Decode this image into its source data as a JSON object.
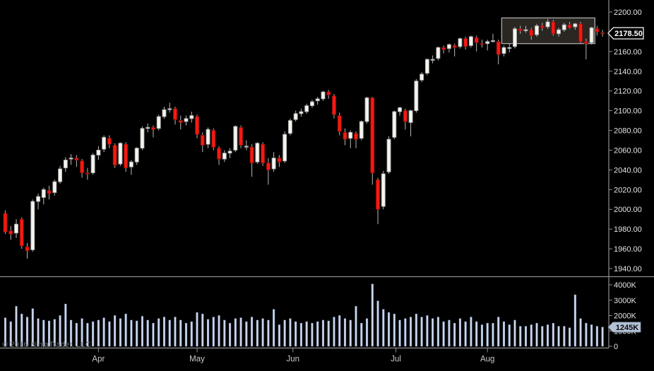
{
  "window": {
    "app": "NinjaTrader chart",
    "copyright": "© 2016 NinjaTrader, LLC",
    "background": "#000000"
  },
  "colors": {
    "up_candle_fill": "#f5f5ef",
    "up_candle_border": "#a8a8a8",
    "down_candle_fill": "#f51a12",
    "down_candle_border": "#8e0c08",
    "wick": "#b8b8b8",
    "volume_bar_fill": "#ccd8ec",
    "volume_bar_border": "#8fa3c8",
    "axis_line": "#8f8f8f",
    "axis_text": "#e4e4e4",
    "month_text": "#c9c9c9",
    "copyright_text": "#707070",
    "price_tag_bg": "#020202",
    "price_tag_border": "#e3e3e3",
    "price_tag_text": "#ffffff",
    "volume_tag_bg": "#b3c2d7",
    "volume_tag_text": "#0a0a0a",
    "annotation_border": "#a3a3a3",
    "annotation_fill": "rgba(168,153,136,0.25)"
  },
  "price_axis": {
    "tick_labels": [
      "2200.00",
      "2160.00",
      "2140.00",
      "2120.00",
      "2100.00",
      "2080.00",
      "2060.00",
      "2040.00",
      "2020.00",
      "2000.00",
      "1980.00",
      "1960.00",
      "1940.00"
    ]
  },
  "volume_axis": {
    "tick_labels": [
      "4000K",
      "3000K",
      "2000K",
      "1000K",
      "0"
    ]
  },
  "x_axis": {
    "months": [
      {
        "label": "Apr",
        "index": 17
      },
      {
        "label": "May",
        "index": 35
      },
      {
        "label": "Jun",
        "index": 52.5
      },
      {
        "label": "Jul",
        "index": 71.3
      },
      {
        "label": "Aug",
        "index": 88
      }
    ]
  },
  "chart_data": {
    "type": "candlestick",
    "title": "",
    "description": "Daily candlestick price panel (approx. 1940-2200 range, Mar-Aug) with volume subpanel in K shares; last price 2178.50, last volume 1245K; gray rectangle annotation drawn around the August consolidation.",
    "last_price_label": "2178.50",
    "last_volume_label": "1245K",
    "price_ylim": [
      1940,
      2200
    ],
    "volume_ylim": [
      0,
      4000
    ],
    "legend_position": "none",
    "grid": false,
    "columns": [
      "open",
      "high",
      "low",
      "close",
      "volume_K"
    ],
    "candles": [
      [
        1996,
        1999,
        1975,
        1977,
        1850
      ],
      [
        1978,
        1983,
        1969,
        1975,
        1600
      ],
      [
        1976,
        1990,
        1971,
        1985,
        2600
      ],
      [
        1990,
        1992,
        1960,
        1963,
        2100
      ],
      [
        1962,
        1966,
        1950,
        1958,
        1900
      ],
      [
        1959,
        2010,
        1957,
        2008,
        2450
      ],
      [
        2008,
        2016,
        2000,
        2013,
        1800
      ],
      [
        2012,
        2022,
        2005,
        2020,
        1700
      ],
      [
        2019,
        2024,
        2010,
        2016,
        1650
      ],
      [
        2017,
        2030,
        2014,
        2028,
        1750
      ],
      [
        2028,
        2044,
        2026,
        2041,
        2000
      ],
      [
        2042,
        2053,
        2038,
        2050,
        2750
      ],
      [
        2051,
        2056,
        2045,
        2052,
        1700
      ],
      [
        2052,
        2055,
        2043,
        2050,
        1500
      ],
      [
        2049,
        2051,
        2032,
        2037,
        1800
      ],
      [
        2037,
        2042,
        2030,
        2036,
        1500
      ],
      [
        2037,
        2057,
        2035,
        2055,
        1600
      ],
      [
        2055,
        2064,
        2050,
        2060,
        1700
      ],
      [
        2061,
        2075,
        2058,
        2073,
        1850
      ],
      [
        2072,
        2075,
        2062,
        2066,
        1600
      ],
      [
        2065,
        2067,
        2042,
        2045,
        2000
      ],
      [
        2046,
        2068,
        2044,
        2067,
        1800
      ],
      [
        2066,
        2068,
        2038,
        2042,
        2100
      ],
      [
        2043,
        2050,
        2035,
        2048,
        1700
      ],
      [
        2048,
        2063,
        2045,
        2062,
        1650
      ],
      [
        2062,
        2084,
        2060,
        2082,
        1950
      ],
      [
        2082,
        2087,
        2078,
        2083,
        1700
      ],
      [
        2083,
        2085,
        2073,
        2081,
        1500
      ],
      [
        2082,
        2096,
        2080,
        2094,
        1800
      ],
      [
        2094,
        2104,
        2092,
        2101,
        1900
      ],
      [
        2101,
        2108,
        2098,
        2102,
        1700
      ],
      [
        2102,
        2104,
        2086,
        2091,
        1900
      ],
      [
        2090,
        2095,
        2081,
        2088,
        1700
      ],
      [
        2089,
        2095,
        2085,
        2092,
        1500
      ],
      [
        2092,
        2099,
        2088,
        2095,
        1600
      ],
      [
        2094,
        2096,
        2072,
        2076,
        2200
      ],
      [
        2075,
        2078,
        2058,
        2065,
        2100
      ],
      [
        2066,
        2083,
        2062,
        2081,
        1750
      ],
      [
        2080,
        2082,
        2060,
        2063,
        1900
      ],
      [
        2062,
        2064,
        2045,
        2051,
        2000
      ],
      [
        2051,
        2060,
        2048,
        2057,
        1700
      ],
      [
        2057,
        2062,
        2052,
        2059,
        1500
      ],
      [
        2060,
        2085,
        2058,
        2084,
        1800
      ],
      [
        2083,
        2085,
        2062,
        2065,
        1850
      ],
      [
        2064,
        2070,
        2060,
        2064,
        1600
      ],
      [
        2063,
        2066,
        2033,
        2047,
        1900
      ],
      [
        2048,
        2068,
        2046,
        2067,
        1700
      ],
      [
        2066,
        2068,
        2044,
        2047,
        1800
      ],
      [
        2047,
        2052,
        2025,
        2040,
        1700
      ],
      [
        2041,
        2058,
        2038,
        2052,
        2400
      ],
      [
        2052,
        2055,
        2043,
        2048,
        1400
      ],
      [
        2049,
        2079,
        2047,
        2076,
        1700
      ],
      [
        2077,
        2092,
        2075,
        2090,
        1800
      ],
      [
        2091,
        2100,
        2089,
        2097,
        1600
      ],
      [
        2097,
        2102,
        2094,
        2099,
        1500
      ],
      [
        2099,
        2107,
        2097,
        2105,
        1600
      ],
      [
        2105,
        2111,
        2103,
        2109,
        1500
      ],
      [
        2110,
        2114,
        2106,
        2112,
        1600
      ],
      [
        2112,
        2120,
        2110,
        2119,
        1700
      ],
      [
        2119,
        2121,
        2112,
        2116,
        1650
      ],
      [
        2115,
        2117,
        2092,
        2096,
        1900
      ],
      [
        2095,
        2098,
        2075,
        2079,
        2000
      ],
      [
        2078,
        2082,
        2065,
        2071,
        1800
      ],
      [
        2072,
        2080,
        2062,
        2078,
        1700
      ],
      [
        2077,
        2079,
        2062,
        2071,
        2600
      ],
      [
        2072,
        2090,
        2070,
        2089,
        1500
      ],
      [
        2089,
        2114,
        2087,
        2113,
        1800
      ],
      [
        2113,
        2114,
        2025,
        2037,
        4050
      ],
      [
        2030,
        2032,
        1985,
        2000,
        2950
      ],
      [
        2003,
        2039,
        2000,
        2036,
        2400
      ],
      [
        2038,
        2074,
        2036,
        2071,
        2200
      ],
      [
        2073,
        2100,
        2071,
        2099,
        2100
      ],
      [
        2099,
        2104,
        2095,
        2103,
        1700
      ],
      [
        2100,
        2102,
        2081,
        2089,
        1800
      ],
      [
        2088,
        2101,
        2074,
        2100,
        1900
      ],
      [
        2100,
        2132,
        2098,
        2130,
        2100
      ],
      [
        2131,
        2139,
        2129,
        2137,
        1900
      ],
      [
        2138,
        2153,
        2136,
        2152,
        2000
      ],
      [
        2152,
        2156,
        2148,
        2152,
        1800
      ],
      [
        2153,
        2165,
        2151,
        2164,
        1900
      ],
      [
        2164,
        2166,
        2158,
        2162,
        1600
      ],
      [
        2163,
        2168,
        2159,
        2167,
        1700
      ],
      [
        2166,
        2168,
        2155,
        2164,
        1500
      ],
      [
        2165,
        2174,
        2163,
        2173,
        1800
      ],
      [
        2173,
        2175,
        2162,
        2165,
        1600
      ],
      [
        2166,
        2176,
        2164,
        2175,
        1900
      ],
      [
        2174,
        2176,
        2160,
        2169,
        1600
      ],
      [
        2168,
        2172,
        2164,
        2167,
        1400
      ],
      [
        2168,
        2172,
        2161,
        2170,
        1500
      ],
      [
        2171,
        2178,
        2169,
        2171,
        1500
      ],
      [
        2170,
        2172,
        2147,
        2157,
        1900
      ],
      [
        2158,
        2166,
        2155,
        2164,
        1600
      ],
      [
        2164,
        2168,
        2159,
        2164,
        1400
      ],
      [
        2165,
        2185,
        2163,
        2183,
        1700
      ],
      [
        2183,
        2186,
        2178,
        2181,
        1300
      ],
      [
        2181,
        2186,
        2179,
        2182,
        1300
      ],
      [
        2182,
        2184,
        2172,
        2176,
        1400
      ],
      [
        2177,
        2188,
        2175,
        2186,
        1500
      ],
      [
        2186,
        2189,
        2181,
        2184,
        1300
      ],
      [
        2185,
        2193,
        2183,
        2190,
        1400
      ],
      [
        2190,
        2192,
        2176,
        2178,
        1500
      ],
      [
        2178,
        2184,
        2175,
        2182,
        1300
      ],
      [
        2182,
        2189,
        2180,
        2187,
        1300
      ],
      [
        2187,
        2190,
        2183,
        2184,
        1200
      ],
      [
        2185,
        2189,
        2182,
        2188,
        3350
      ],
      [
        2188,
        2190,
        2168,
        2170,
        1800
      ],
      [
        2170,
        2173,
        2152,
        2168,
        1500
      ],
      [
        2169,
        2185,
        2167,
        2184,
        1400
      ],
      [
        2183,
        2186,
        2176,
        2180,
        1300
      ],
      [
        2179,
        2182,
        2175,
        2178.5,
        1245
      ]
    ],
    "annotation_box": {
      "start_index": 90.6,
      "end_index": 107.6,
      "price_top": 2194,
      "price_bottom": 2168
    }
  }
}
